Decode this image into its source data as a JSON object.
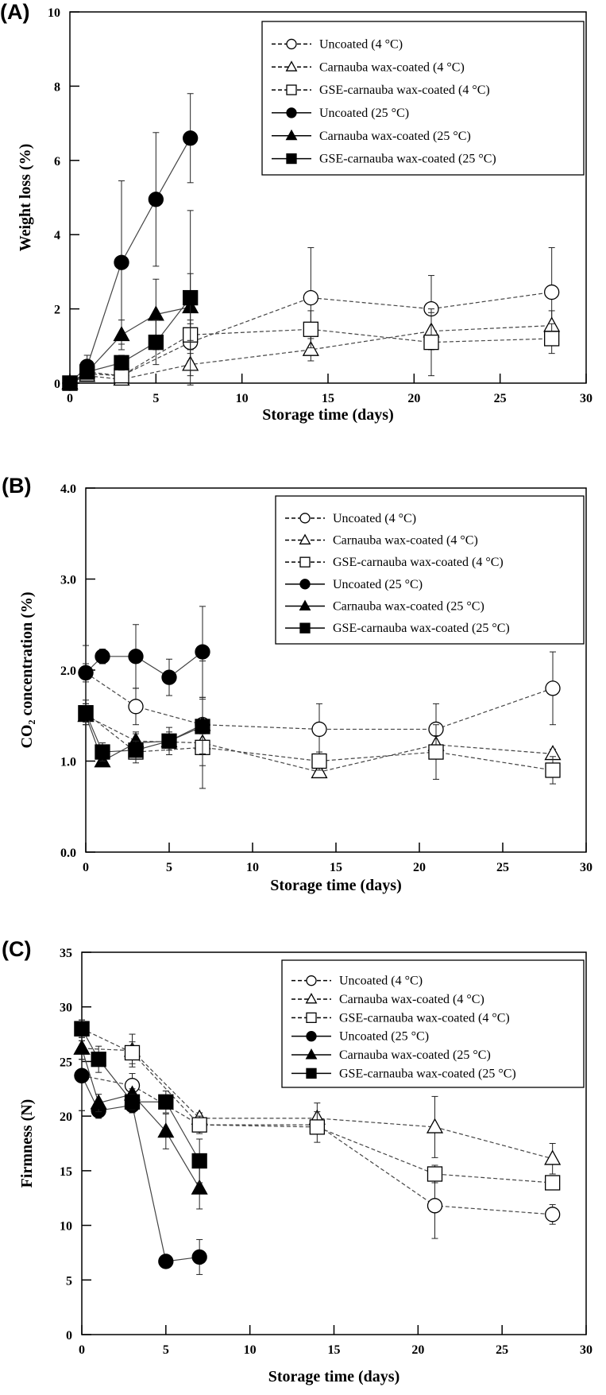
{
  "chart_data": [
    {
      "type": "line",
      "panel_label": "(A)",
      "xlabel": "Storage time (days)",
      "ylabel": "Weight loss (%)",
      "xlim": [
        0,
        30
      ],
      "ylim": [
        0,
        10
      ],
      "xticks": [
        "0",
        "5",
        "10",
        "15",
        "20",
        "25",
        "30"
      ],
      "yticks": [
        "0",
        "2",
        "4",
        "6",
        "8",
        "10"
      ],
      "legend_position": "top-right",
      "series": [
        {
          "name": "Uncoated (4 °C)",
          "marker": "circle",
          "filled": false,
          "dashed": true,
          "x": [
            0,
            1,
            3,
            7,
            14,
            21,
            28
          ],
          "y": [
            0,
            0.3,
            0.2,
            1.1,
            2.3,
            2.0,
            2.45
          ],
          "err": [
            0,
            0.1,
            0.1,
            0.5,
            1.35,
            0.9,
            1.2
          ]
        },
        {
          "name": "Carnauba wax-coated (4 °C)",
          "marker": "triangle",
          "filled": false,
          "dashed": true,
          "x": [
            0,
            1,
            3,
            7,
            14,
            21,
            28
          ],
          "y": [
            0,
            0.2,
            0.1,
            0.5,
            0.9,
            1.4,
            1.55
          ],
          "err": [
            0,
            0.1,
            0.1,
            0.3,
            0.3,
            0.5,
            0.4
          ]
        },
        {
          "name": "GSE-carnauba wax-coated (4 °C)",
          "marker": "square",
          "filled": false,
          "dashed": true,
          "x": [
            0,
            1,
            3,
            7,
            14,
            21,
            28
          ],
          "y": [
            0,
            0.25,
            0.2,
            1.3,
            1.45,
            1.1,
            1.2
          ],
          "err": [
            0,
            0.1,
            0.1,
            0.4,
            0.5,
            0.9,
            0.4
          ]
        },
        {
          "name": "Uncoated (25 °C)",
          "marker": "circle",
          "filled": true,
          "dashed": false,
          "x": [
            0,
            1,
            3,
            5,
            7
          ],
          "y": [
            0,
            0.45,
            3.25,
            4.95,
            6.6
          ],
          "err": [
            0,
            0.3,
            2.2,
            1.8,
            1.2
          ]
        },
        {
          "name": "Carnauba wax-coated (25 °C)",
          "marker": "triangle",
          "filled": true,
          "dashed": false,
          "x": [
            0,
            1,
            3,
            5,
            7
          ],
          "y": [
            0,
            0.3,
            1.3,
            1.85,
            2.05
          ],
          "err": [
            0,
            0.1,
            0.4,
            0.95,
            0.9
          ]
        },
        {
          "name": "GSE-carnauba wax-coated (25 °C)",
          "marker": "square",
          "filled": true,
          "dashed": false,
          "x": [
            0,
            1,
            3,
            5,
            7
          ],
          "y": [
            0,
            0.3,
            0.55,
            1.1,
            2.3
          ],
          "err": [
            0,
            0.1,
            0.2,
            0.6,
            2.35
          ]
        }
      ]
    },
    {
      "type": "line",
      "panel_label": "(B)",
      "xlabel": "Storage time (days)",
      "ylabel": "CO₂ concentration (%)",
      "xlim": [
        0,
        30
      ],
      "ylim": [
        0,
        4
      ],
      "xticks": [
        "0",
        "5",
        "10",
        "15",
        "20",
        "25",
        "30"
      ],
      "yticks": [
        "0.0",
        "1.0",
        "2.0",
        "3.0",
        "4.0"
      ],
      "legend_position": "top-right",
      "series": [
        {
          "name": "Uncoated (4 °C)",
          "marker": "circle",
          "filled": false,
          "dashed": true,
          "x": [
            0,
            3,
            7,
            14,
            21,
            28
          ],
          "y": [
            1.97,
            1.6,
            1.4,
            1.35,
            1.35,
            1.8
          ],
          "err": [
            0.3,
            0.2,
            0.3,
            0.28,
            0.28,
            0.4
          ]
        },
        {
          "name": "Carnauba wax-coated (4 °C)",
          "marker": "triangle",
          "filled": false,
          "dashed": true,
          "x": [
            0,
            3,
            7,
            14,
            21,
            28
          ],
          "y": [
            1.5,
            1.22,
            1.2,
            0.88,
            1.18,
            1.08
          ],
          "err": [
            0.1,
            0.1,
            0.1,
            0.05,
            0.1,
            0.05
          ]
        },
        {
          "name": "GSE-carnauba wax-coated (4 °C)",
          "marker": "square",
          "filled": false,
          "dashed": true,
          "x": [
            0,
            3,
            7,
            14,
            21,
            28
          ],
          "y": [
            1.53,
            1.1,
            1.15,
            1.0,
            1.1,
            0.9
          ],
          "err": [
            0.1,
            0.12,
            0.2,
            0.1,
            0.3,
            0.15
          ]
        },
        {
          "name": "Uncoated (25 °C)",
          "marker": "circle",
          "filled": true,
          "dashed": false,
          "x": [
            0,
            1,
            3,
            5,
            7
          ],
          "y": [
            1.97,
            2.15,
            2.15,
            1.92,
            2.2
          ],
          "err": [
            0.1,
            0.08,
            0.35,
            0.2,
            0.5
          ]
        },
        {
          "name": "Carnauba wax-coated (25 °C)",
          "marker": "triangle",
          "filled": true,
          "dashed": false,
          "x": [
            0,
            1,
            3,
            5,
            7
          ],
          "y": [
            1.5,
            1.0,
            1.2,
            1.22,
            1.4
          ],
          "err": [
            0.1,
            0.05,
            0.1,
            0.1,
            0.7
          ]
        },
        {
          "name": "GSE-carnauba wax-coated (25 °C)",
          "marker": "square",
          "filled": true,
          "dashed": false,
          "x": [
            0,
            1,
            3,
            5,
            7
          ],
          "y": [
            1.53,
            1.1,
            1.12,
            1.22,
            1.38
          ],
          "err": [
            0.1,
            0.1,
            0.1,
            0.15,
            0.3
          ]
        }
      ]
    },
    {
      "type": "line",
      "panel_label": "(C)",
      "xlabel": "Storage time (days)",
      "ylabel": "Firmness  (N)",
      "xlim": [
        0,
        30
      ],
      "ylim": [
        0,
        35
      ],
      "xticks": [
        "0",
        "5",
        "10",
        "15",
        "20",
        "25",
        "30"
      ],
      "yticks": [
        "0",
        "5",
        "10",
        "15",
        "20",
        "25",
        "30",
        "35"
      ],
      "legend_position": "top-right",
      "series": [
        {
          "name": "Uncoated (4 °C)",
          "marker": "circle",
          "filled": false,
          "dashed": true,
          "x": [
            0,
            3,
            7,
            14,
            21,
            28
          ],
          "y": [
            23.7,
            22.8,
            19.2,
            19.2,
            11.8,
            11.0
          ],
          "err": [
            3.2,
            1.1,
            0.6,
            0.6,
            3.0,
            0.9
          ]
        },
        {
          "name": "Carnauba wax-coated (4 °C)",
          "marker": "triangle",
          "filled": false,
          "dashed": true,
          "x": [
            0,
            3,
            7,
            14,
            21,
            28
          ],
          "y": [
            26.2,
            26.0,
            19.8,
            19.8,
            19.0,
            16.1
          ],
          "err": [
            1.0,
            1.5,
            0.5,
            1.4,
            2.8,
            1.4
          ]
        },
        {
          "name": "GSE-carnauba wax-coated (4 °C)",
          "marker": "square",
          "filled": false,
          "dashed": true,
          "x": [
            0,
            3,
            7,
            14,
            21,
            28
          ],
          "y": [
            28.0,
            25.8,
            19.2,
            19.0,
            14.7,
            13.9
          ],
          "err": [
            0.8,
            1.0,
            0.8,
            1.4,
            0.8,
            0.5
          ]
        },
        {
          "name": "Uncoated (25 °C)",
          "marker": "circle",
          "filled": true,
          "dashed": false,
          "x": [
            0,
            1,
            3,
            5,
            7
          ],
          "y": [
            23.7,
            20.5,
            21.0,
            6.7,
            7.1
          ],
          "err": [
            3.2,
            0.7,
            0.7,
            0.5,
            1.6
          ]
        },
        {
          "name": "Carnauba wax-coated (25 °C)",
          "marker": "triangle",
          "filled": true,
          "dashed": false,
          "x": [
            0,
            1,
            3,
            5,
            7
          ],
          "y": [
            26.2,
            21.2,
            22.0,
            18.6,
            13.4
          ],
          "err": [
            1.0,
            0.8,
            0.5,
            1.6,
            1.9
          ]
        },
        {
          "name": "GSE-carnauba wax-coated (25 °C)",
          "marker": "square",
          "filled": true,
          "dashed": false,
          "x": [
            0,
            1,
            3,
            5,
            7
          ],
          "y": [
            28.0,
            25.2,
            21.3,
            21.3,
            15.9
          ],
          "err": [
            0.8,
            1.2,
            0.7,
            1.0,
            2.0
          ]
        }
      ]
    }
  ]
}
